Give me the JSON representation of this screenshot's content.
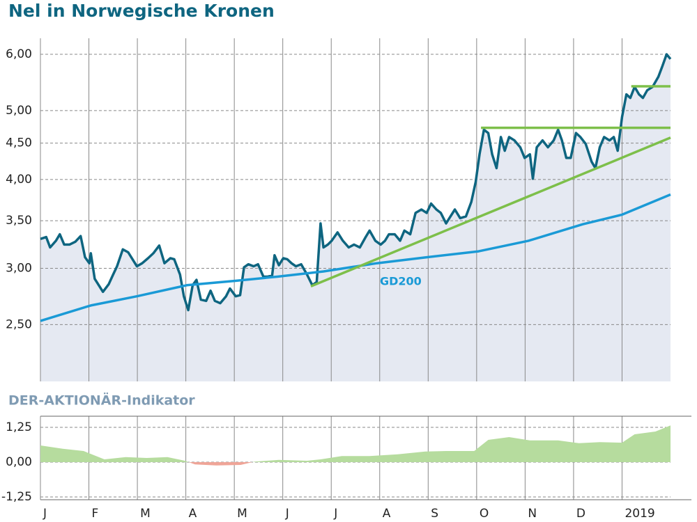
{
  "chart_data": [
    {
      "type": "line",
      "title": "Nel in Norwegische Kronen",
      "log": true,
      "grid": true,
      "fill_color": "#e5e9f2",
      "xlim": [
        0,
        13.0
      ],
      "ylim": [
        2.08,
        6.32
      ],
      "yticks": [
        {
          "value": 2.5,
          "label": "2,50"
        },
        {
          "value": 3,
          "label": "3,00"
        },
        {
          "value": 3.5,
          "label": "3,50"
        },
        {
          "value": 4,
          "label": "4,00"
        },
        {
          "value": 4.5,
          "label": "4,50"
        },
        {
          "value": 5,
          "label": "5,00"
        },
        {
          "value": 6,
          "label": "6,00"
        }
      ],
      "series": [
        {
          "color": "#0e6580",
          "x": [
            0,
            0.12,
            0.2,
            0.32,
            0.4,
            0.49,
            0.6,
            0.72,
            0.83,
            0.92,
            1.01,
            1.04,
            1.12,
            1.29,
            1.41,
            1.5,
            1.58,
            1.7,
            1.81,
            1.99,
            2.1,
            2.22,
            2.33,
            2.45,
            2.56,
            2.68,
            2.76,
            2.88,
            2.96,
            3.05,
            3.14,
            3.22,
            3.31,
            3.42,
            3.51,
            3.6,
            3.71,
            3.83,
            3.91,
            4.03,
            4.12,
            4.2,
            4.29,
            4.4,
            4.49,
            4.6,
            4.69,
            4.78,
            4.83,
            4.92,
            5.01,
            5.09,
            5.18,
            5.27,
            5.38,
            5.5,
            5.61,
            5.7,
            5.78,
            5.84,
            5.93,
            6.01,
            6.13,
            6.24,
            6.36,
            6.47,
            6.59,
            6.71,
            6.79,
            6.91,
            7.02,
            7.11,
            7.19,
            7.31,
            7.42,
            7.51,
            7.63,
            7.74,
            7.86,
            7.97,
            8.06,
            8.17,
            8.26,
            8.37,
            8.46,
            8.55,
            8.66,
            8.78,
            8.89,
            8.98,
            9.06,
            9.15,
            9.24,
            9.32,
            9.41,
            9.5,
            9.58,
            9.67,
            9.78,
            9.9,
            9.99,
            10.1,
            10.16,
            10.24,
            10.36,
            10.47,
            10.59,
            10.68,
            10.76,
            10.85,
            10.94,
            11.05,
            11.14,
            11.25,
            11.37,
            11.45,
            11.54,
            11.63,
            11.74,
            11.83,
            11.91,
            12.0,
            12.09,
            12.17,
            12.26,
            12.35,
            12.43,
            12.52,
            12.63,
            12.75,
            12.83,
            12.92,
            13.0
          ],
          "values": [
            3.3,
            3.32,
            3.21,
            3.28,
            3.35,
            3.24,
            3.24,
            3.27,
            3.33,
            3.11,
            3.05,
            3.15,
            2.9,
            2.78,
            2.85,
            2.94,
            3.02,
            3.19,
            3.16,
            3.02,
            3.05,
            3.1,
            3.15,
            3.23,
            3.05,
            3.1,
            3.09,
            2.94,
            2.74,
            2.62,
            2.84,
            2.89,
            2.71,
            2.7,
            2.79,
            2.7,
            2.68,
            2.74,
            2.81,
            2.74,
            2.75,
            3.01,
            3.04,
            3.02,
            3.04,
            2.92,
            2.92,
            2.93,
            3.13,
            3.03,
            3.1,
            3.09,
            3.05,
            3.02,
            3.04,
            2.94,
            2.84,
            2.87,
            3.47,
            3.21,
            3.24,
            3.28,
            3.37,
            3.28,
            3.21,
            3.24,
            3.21,
            3.32,
            3.39,
            3.28,
            3.24,
            3.28,
            3.35,
            3.35,
            3.28,
            3.39,
            3.35,
            3.59,
            3.63,
            3.59,
            3.7,
            3.63,
            3.59,
            3.47,
            3.55,
            3.63,
            3.53,
            3.55,
            3.72,
            3.97,
            4.34,
            4.7,
            4.65,
            4.34,
            4.15,
            4.59,
            4.39,
            4.59,
            4.54,
            4.44,
            4.29,
            4.34,
            4.01,
            4.44,
            4.54,
            4.44,
            4.54,
            4.7,
            4.54,
            4.29,
            4.29,
            4.65,
            4.59,
            4.49,
            4.24,
            4.15,
            4.44,
            4.59,
            4.54,
            4.59,
            4.39,
            4.9,
            5.27,
            5.21,
            5.4,
            5.27,
            5.21,
            5.34,
            5.4,
            5.58,
            5.77,
            6.0,
            5.91
          ]
        },
        {
          "name": "GD200",
          "color": "#1a9ad6",
          "x": [
            0,
            1.04,
            1.99,
            3.02,
            4.0,
            4.89,
            5.84,
            6.94,
            7.97,
            9.04,
            10.07,
            11.19,
            12.0,
            13.0
          ],
          "values": [
            2.53,
            2.66,
            2.74,
            2.84,
            2.88,
            2.92,
            2.97,
            3.05,
            3.11,
            3.17,
            3.28,
            3.46,
            3.57,
            3.81
          ]
        },
        {
          "color": "#7dbf4a",
          "x": [
            5.58,
            13.0
          ],
          "values": [
            2.83,
            4.58
          ]
        },
        {
          "color": "#7dbf4a",
          "x": [
            9.09,
            13.0
          ],
          "values": [
            4.73,
            4.73
          ]
        },
        {
          "color": "#7dbf4a",
          "x": [
            12.19,
            13.0
          ],
          "values": [
            5.41,
            5.41
          ]
        }
      ]
    },
    {
      "type": "area",
      "title": "DER-AKTIONÄR-Indikator",
      "grid": true,
      "positive_color": "#b6dc9e",
      "negative_color": "#efa598",
      "xlim": [
        0,
        13.0
      ],
      "ylim": [
        -1.35,
        1.65
      ],
      "xticks": [
        {
          "value": 0,
          "label": "J"
        },
        {
          "value": 1,
          "label": "F"
        },
        {
          "value": 2,
          "label": "M"
        },
        {
          "value": 3,
          "label": "A"
        },
        {
          "value": 4,
          "label": "M"
        },
        {
          "value": 5,
          "label": "J"
        },
        {
          "value": 6,
          "label": "J"
        },
        {
          "value": 7,
          "label": "A"
        },
        {
          "value": 8,
          "label": "S"
        },
        {
          "value": 9,
          "label": "O"
        },
        {
          "value": 10,
          "label": "N"
        },
        {
          "value": 11,
          "label": "D"
        },
        {
          "value": 12,
          "label": "2019"
        }
      ],
      "yticks": [
        {
          "value": -1.25,
          "label": "-1,25"
        },
        {
          "value": 0,
          "label": "0,00"
        },
        {
          "value": 1.25,
          "label": "1,25"
        }
      ],
      "x": [
        0,
        0.46,
        0.89,
        1.32,
        1.76,
        2.19,
        2.62,
        2.98,
        3.19,
        3.63,
        4.13,
        4.42,
        4.92,
        5.5,
        5.78,
        6.22,
        6.79,
        7.37,
        7.94,
        8.37,
        8.95,
        9.24,
        9.67,
        10.1,
        10.68,
        11.11,
        11.54,
        12.0,
        12.26,
        12.69,
        13.0
      ],
      "values": [
        0.6,
        0.48,
        0.4,
        0.1,
        0.18,
        0.15,
        0.18,
        0.05,
        -0.08,
        -0.12,
        -0.1,
        0.02,
        0.08,
        0.05,
        0.1,
        0.22,
        0.22,
        0.28,
        0.38,
        0.4,
        0.4,
        0.8,
        0.9,
        0.78,
        0.78,
        0.68,
        0.72,
        0.7,
        1.0,
        1.1,
        1.32
      ]
    }
  ]
}
